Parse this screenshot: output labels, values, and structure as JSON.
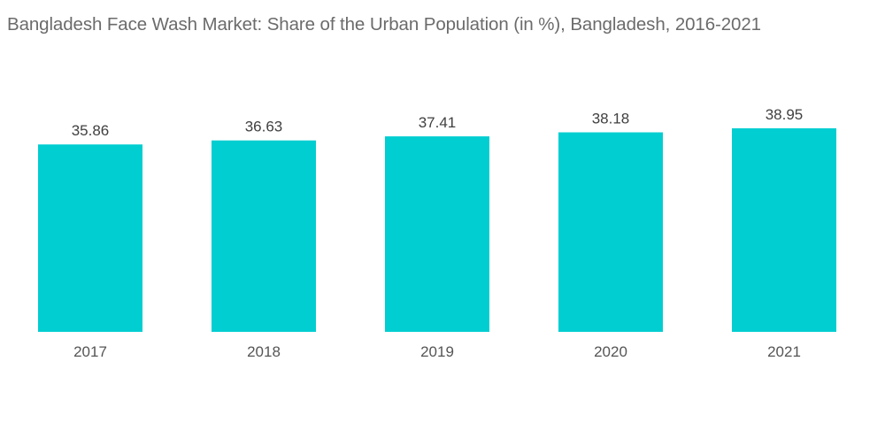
{
  "chart_data": {
    "type": "bar",
    "title": "Bangladesh Face Wash Market: Share of the Urban Population (in %), Bangladesh, 2016-2021",
    "categories": [
      "2017",
      "2018",
      "2019",
      "2020",
      "2021"
    ],
    "values": [
      35.86,
      36.63,
      37.41,
      38.18,
      38.95
    ],
    "data_labels": [
      "35.86",
      "36.63",
      "37.41",
      "38.18",
      "38.95"
    ],
    "xlabel": "",
    "ylabel": "",
    "ylim": [
      0,
      40
    ],
    "grid": false,
    "legend": "none",
    "bar_color": "#00ced1"
  }
}
